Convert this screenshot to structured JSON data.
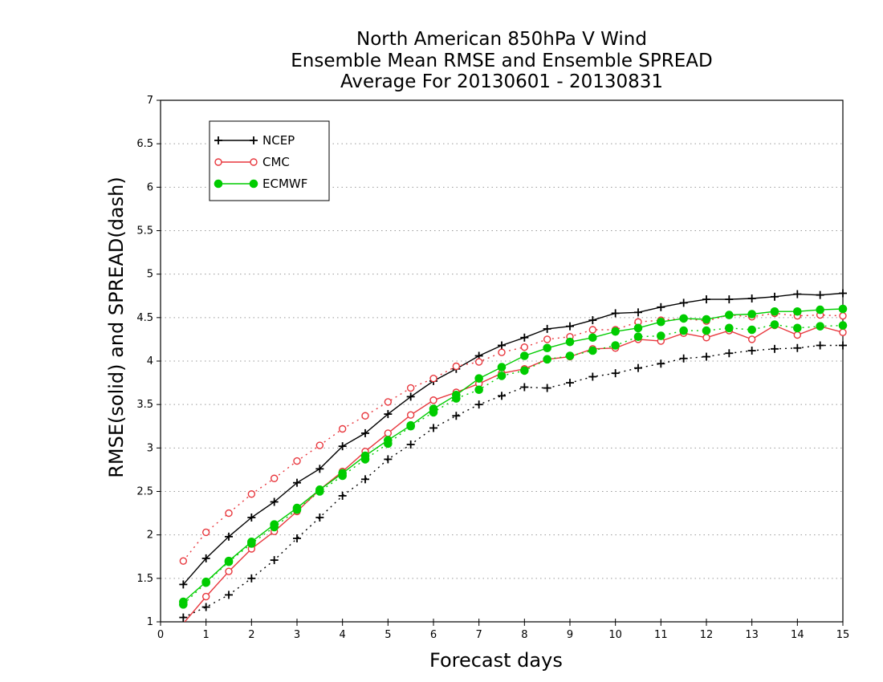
{
  "chart_data": {
    "type": "line",
    "title": [
      "North American 850hPa V Wind",
      "Ensemble Mean RMSE and Ensemble SPREAD",
      "Average For 20130601 - 20130831"
    ],
    "xlabel": "Forecast days",
    "ylabel": "RMSE(solid) and SPREAD(dash)",
    "xlim": [
      0,
      15
    ],
    "ylim": [
      1,
      7
    ],
    "xticks": [
      "0",
      "1",
      "2",
      "3",
      "4",
      "5",
      "6",
      "7",
      "8",
      "9",
      "10",
      "11",
      "12",
      "13",
      "14",
      "15"
    ],
    "yticks": [
      "1",
      "1.5",
      "2",
      "2.5",
      "3",
      "3.5",
      "4",
      "4.5",
      "5",
      "5.5",
      "6",
      "6.5",
      "7"
    ],
    "grid": "horizontal dotted",
    "legend_position": "top-left",
    "x": [
      0.5,
      1,
      1.5,
      2,
      2.5,
      3,
      3.5,
      4,
      4.5,
      5,
      5.5,
      6,
      6.5,
      7,
      7.5,
      8,
      8.5,
      9,
      9.5,
      10,
      10.5,
      11,
      11.5,
      12,
      12.5,
      13,
      13.5,
      14,
      14.5,
      15
    ],
    "series": [
      {
        "name": "NCEP",
        "marker": "plus",
        "color": "#000000",
        "rmse": [
          1.43,
          1.73,
          1.98,
          2.2,
          2.38,
          2.6,
          2.76,
          3.02,
          3.17,
          3.39,
          3.59,
          3.77,
          3.91,
          4.06,
          4.18,
          4.27,
          4.37,
          4.4,
          4.47,
          4.55,
          4.56,
          4.62,
          4.67,
          4.71,
          4.71,
          4.72,
          4.74,
          4.77,
          4.76,
          4.78
        ],
        "spread": [
          1.05,
          1.17,
          1.31,
          1.5,
          1.71,
          1.96,
          2.2,
          2.45,
          2.64,
          2.87,
          3.04,
          3.23,
          3.37,
          3.5,
          3.6,
          3.7,
          3.69,
          3.75,
          3.82,
          3.86,
          3.92,
          3.97,
          4.03,
          4.05,
          4.09,
          4.12,
          4.14,
          4.15,
          4.18,
          4.18
        ]
      },
      {
        "name": "CMC",
        "marker": "open-circle",
        "color": "#e8373d",
        "rmse": [
          0.98,
          1.29,
          1.58,
          1.84,
          2.04,
          2.27,
          2.52,
          2.73,
          2.96,
          3.17,
          3.38,
          3.55,
          3.64,
          3.74,
          3.86,
          3.91,
          4.02,
          4.05,
          4.14,
          4.15,
          4.25,
          4.23,
          4.32,
          4.27,
          4.35,
          4.25,
          4.41,
          4.3,
          4.4,
          4.33
        ],
        "spread": [
          1.7,
          2.03,
          2.25,
          2.47,
          2.65,
          2.85,
          3.03,
          3.22,
          3.37,
          3.53,
          3.69,
          3.8,
          3.94,
          3.99,
          4.1,
          4.16,
          4.25,
          4.28,
          4.36,
          4.36,
          4.45,
          4.47,
          4.49,
          4.46,
          4.53,
          4.51,
          4.55,
          4.52,
          4.53,
          4.52
        ]
      },
      {
        "name": "ECMWF",
        "marker": "filled-circle",
        "color": "#00cc00",
        "rmse": [
          1.23,
          1.46,
          1.7,
          1.92,
          2.12,
          2.31,
          2.52,
          2.71,
          2.91,
          3.09,
          3.26,
          3.45,
          3.61,
          3.8,
          3.93,
          4.06,
          4.15,
          4.22,
          4.27,
          4.34,
          4.38,
          4.45,
          4.49,
          4.48,
          4.53,
          4.54,
          4.57,
          4.57,
          4.59,
          4.6
        ],
        "spread": [
          1.2,
          1.45,
          1.69,
          1.9,
          2.09,
          2.29,
          2.5,
          2.68,
          2.87,
          3.05,
          3.25,
          3.41,
          3.57,
          3.67,
          3.83,
          3.89,
          4.02,
          4.06,
          4.12,
          4.18,
          4.28,
          4.29,
          4.35,
          4.35,
          4.38,
          4.36,
          4.42,
          4.38,
          4.4,
          4.41
        ]
      }
    ]
  }
}
